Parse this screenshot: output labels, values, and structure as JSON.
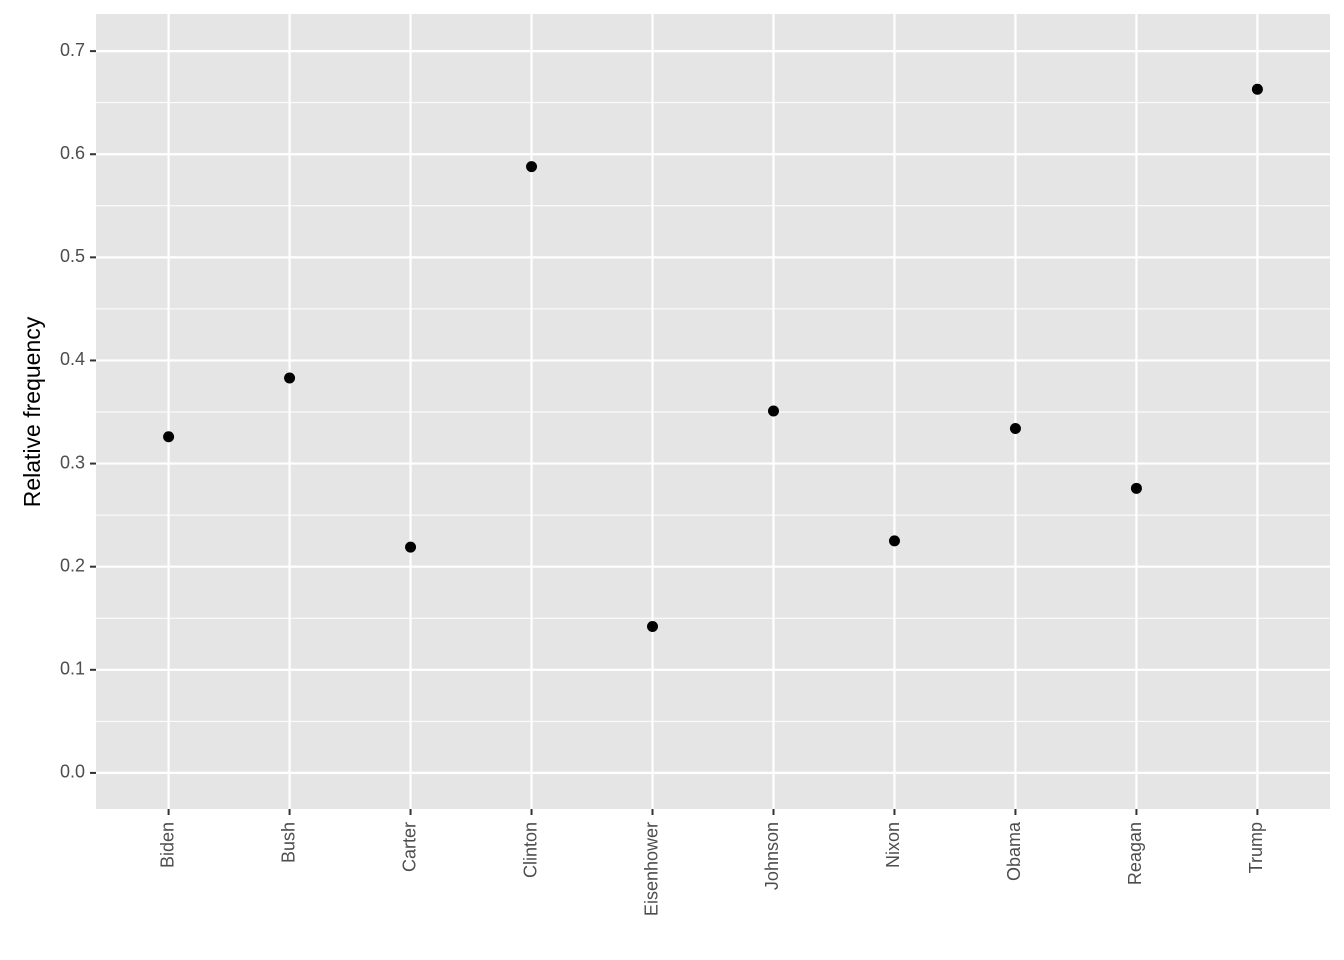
{
  "chart_data": {
    "type": "scatter",
    "y_label": "Relative frequency",
    "categories": [
      "Biden",
      "Bush",
      "Carter",
      "Clinton",
      "Eisenhower",
      "Johnson",
      "Nixon",
      "Obama",
      "Reagan",
      "Trump"
    ],
    "values": [
      0.326,
      0.383,
      0.219,
      0.588,
      0.142,
      0.351,
      0.225,
      0.334,
      0.276,
      0.663
    ],
    "color": "#000000",
    "ylim": [
      -0.035,
      0.736
    ],
    "yticks": [
      {
        "value": 0,
        "label": "0.0"
      },
      0.1,
      0.2,
      0.3,
      0.4,
      0.5,
      0.6,
      0.7
    ],
    "grid": true
  }
}
